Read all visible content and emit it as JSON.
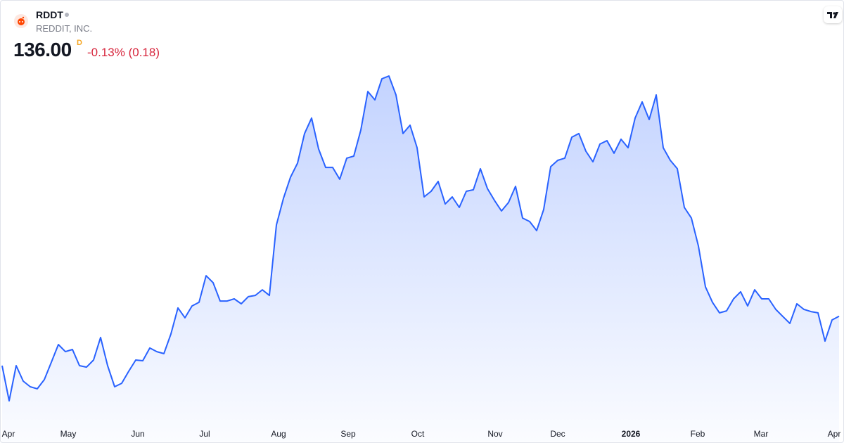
{
  "header": {
    "symbol": "RDDT",
    "company": "REDDIT, INC.",
    "price": "136.00",
    "flag": "D",
    "change": "-0.13% (0.18)"
  },
  "chart_data": {
    "type": "area",
    "color": "#2962ff",
    "ylim": [
      78,
      275
    ],
    "xlim": [
      0,
      119
    ],
    "xticks": [
      {
        "value": 0.8,
        "label": "Apr"
      },
      {
        "value": 9.4,
        "label": "May"
      },
      {
        "value": 19.3,
        "label": "Jun"
      },
      {
        "value": 28.8,
        "label": "Jul"
      },
      {
        "value": 39.3,
        "label": "Aug"
      },
      {
        "value": 49.2,
        "label": "Sep"
      },
      {
        "value": 59.1,
        "label": "Oct"
      },
      {
        "value": 70.1,
        "label": "Nov"
      },
      {
        "value": 79,
        "label": "Dec"
      },
      {
        "value": 89.4,
        "label": "2026"
      },
      {
        "value": 98.9,
        "label": "Feb"
      },
      {
        "value": 107.9,
        "label": "Mar"
      },
      {
        "value": 118.3,
        "label": "Apr"
      }
    ],
    "values": [
      108.9,
      89.6,
      108.9,
      100.4,
      97.3,
      96.2,
      101.2,
      110.8,
      120.5,
      116.6,
      117.8,
      108.9,
      108.1,
      112.0,
      124.4,
      108.9,
      97.3,
      99.2,
      105.8,
      112.0,
      111.6,
      118.6,
      116.6,
      115.5,
      126.3,
      140.6,
      135.2,
      141.7,
      143.7,
      158.3,
      154.5,
      144.4,
      144.4,
      145.6,
      142.9,
      146.8,
      147.5,
      150.6,
      147.5,
      186.2,
      200.8,
      212.4,
      220.1,
      236.4,
      244.9,
      227.9,
      217.8,
      217.8,
      211.3,
      222.9,
      224.0,
      238.3,
      259.5,
      254.9,
      266.5,
      268.0,
      257.6,
      236.4,
      241.0,
      228.6,
      201.6,
      204.7,
      210.1,
      197.7,
      201.6,
      195.8,
      204.7,
      205.5,
      217.1,
      206.2,
      199.7,
      193.9,
      198.5,
      207.4,
      190.0,
      188.1,
      183.1,
      194.7,
      218.2,
      221.7,
      222.9,
      234.4,
      236.4,
      226.7,
      220.9,
      230.6,
      232.5,
      225.6,
      233.3,
      228.6,
      244.9,
      253.8,
      244.1,
      257.6,
      228.6,
      221.7,
      217.1,
      195.8,
      190.0,
      174.6,
      152.2,
      143.7,
      137.9,
      139.0,
      145.6,
      149.5,
      141.7,
      150.6,
      145.6,
      145.6,
      139.8,
      135.9,
      132.1,
      142.9,
      139.8,
      138.6,
      137.9,
      122.4,
      134.0,
      136.0
    ]
  }
}
